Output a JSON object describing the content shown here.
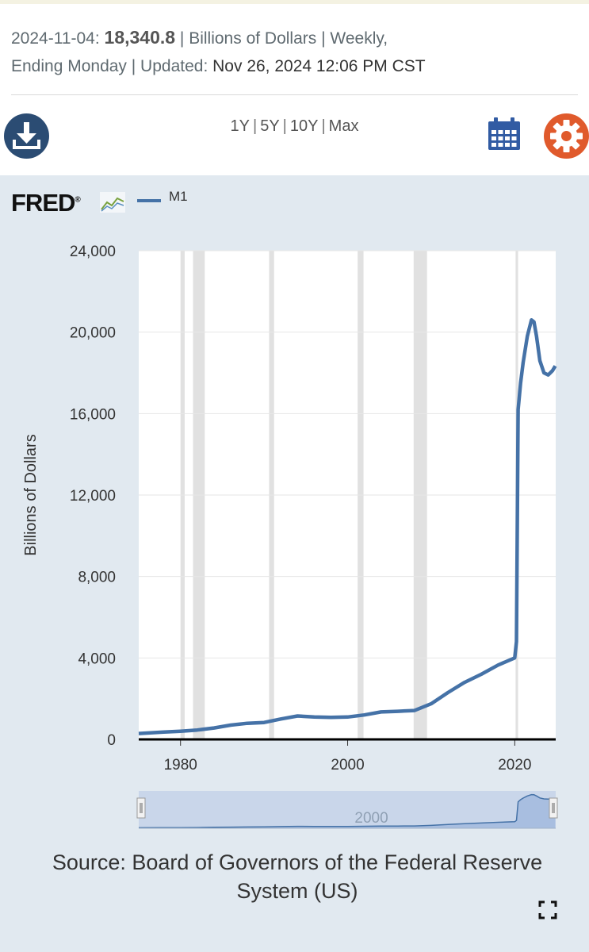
{
  "header": {
    "date_label": "2024-11-04:",
    "value": "18,340.8",
    "units_text": "| Billions of Dollars | Weekly,",
    "line2": "Ending Monday | Updated:",
    "updated": "Nov 26, 2024 12:06 PM CST"
  },
  "toolbar": {
    "icons": {
      "download": "download-icon",
      "calendar": "calendar-icon",
      "settings": "gear-icon"
    },
    "ranges": [
      "1Y",
      "5Y",
      "10Y",
      "Max"
    ]
  },
  "brand": {
    "logo": "FRED",
    "logo_mark": "®"
  },
  "colors": {
    "series": "#4572a7",
    "panel": "#e1e9f0",
    "recession": "#e1e1e1",
    "accent_orange": "#e05a2c",
    "icon_blue": "#2b4c73",
    "calendar_blue": "#315ba3"
  },
  "chart_data": {
    "type": "line",
    "title": "",
    "xlabel": "",
    "ylabel": "Billions of Dollars",
    "xlim": [
      1975,
      2024.9
    ],
    "ylim": [
      0,
      24000
    ],
    "yticks": [
      0,
      4000,
      8000,
      12000,
      16000,
      20000,
      24000
    ],
    "ytick_labels": [
      "0",
      "4,000",
      "8,000",
      "12,000",
      "16,000",
      "20,000",
      "24,000"
    ],
    "xticks": [
      1980,
      2000,
      2020
    ],
    "xtick_labels": [
      "1980",
      "2000",
      "2020"
    ],
    "grid": true,
    "legend": "top-left",
    "recessions": [
      [
        1980.0,
        1980.5
      ],
      [
        1981.5,
        1982.9
      ],
      [
        1990.6,
        1991.2
      ],
      [
        2001.2,
        2001.9
      ],
      [
        2007.9,
        2009.5
      ],
      [
        2020.1,
        2020.4
      ]
    ],
    "series": [
      {
        "name": "M1",
        "x": [
          1975,
          1978,
          1980,
          1982,
          1984,
          1986,
          1988,
          1990,
          1992,
          1994,
          1996,
          1998,
          2000,
          2002,
          2004,
          2006,
          2008,
          2010,
          2012,
          2014,
          2016,
          2018,
          2020.0,
          2020.2,
          2020.4,
          2020.7,
          2021.0,
          2021.5,
          2022.0,
          2022.3,
          2022.6,
          2023.0,
          2023.5,
          2024.0,
          2024.5,
          2024.85
        ],
        "y": [
          290,
          360,
          400,
          460,
          560,
          700,
          790,
          830,
          1000,
          1150,
          1100,
          1080,
          1100,
          1200,
          1350,
          1380,
          1420,
          1750,
          2300,
          2800,
          3200,
          3650,
          4000,
          4800,
          16200,
          17500,
          18500,
          19800,
          20600,
          20500,
          19800,
          18600,
          18000,
          17900,
          18100,
          18340.8
        ]
      }
    ],
    "navigator": {
      "tick_labels": [
        "2000"
      ]
    }
  },
  "source": "Source: Board of Governors of the Federal Reserve System (US)"
}
